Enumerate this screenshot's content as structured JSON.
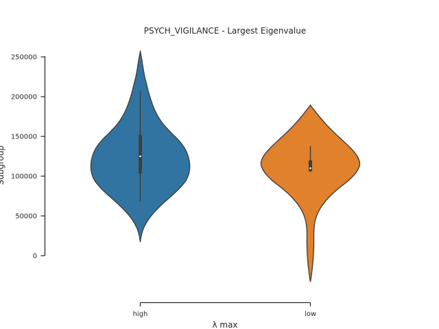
{
  "chart_data": {
    "type": "violin",
    "title": "PSYCH_VIGILANCE - Largest Eigenvalue",
    "xlabel": "λ  max",
    "ylabel": "Subgroup",
    "categories": [
      "high",
      "low"
    ],
    "ylim": [
      0,
      250000
    ],
    "yticks": [
      0,
      50000,
      100000,
      150000,
      200000,
      250000
    ],
    "ytick_labels": [
      "0",
      "50000",
      "100000",
      "150000",
      "200000",
      "250000"
    ],
    "grid": false,
    "series": [
      {
        "category": "high",
        "color": "#3274a1",
        "density_extent": [
          17000,
          257000
        ],
        "whisker": [
          68000,
          207000
        ],
        "q1": 103000,
        "q3": 152000,
        "median": 125000,
        "profile": [
          [
            17000,
            0.0
          ],
          [
            25000,
            0.02
          ],
          [
            35000,
            0.07
          ],
          [
            45000,
            0.16
          ],
          [
            55000,
            0.29
          ],
          [
            65000,
            0.45
          ],
          [
            75000,
            0.63
          ],
          [
            85000,
            0.8
          ],
          [
            95000,
            0.93
          ],
          [
            105000,
            0.99
          ],
          [
            115000,
            1.0
          ],
          [
            125000,
            0.97
          ],
          [
            135000,
            0.9
          ],
          [
            145000,
            0.78
          ],
          [
            155000,
            0.62
          ],
          [
            165000,
            0.47
          ],
          [
            175000,
            0.36
          ],
          [
            185000,
            0.28
          ],
          [
            195000,
            0.22
          ],
          [
            205000,
            0.17
          ],
          [
            215000,
            0.13
          ],
          [
            225000,
            0.09
          ],
          [
            235000,
            0.06
          ],
          [
            245000,
            0.035
          ],
          [
            252000,
            0.015
          ],
          [
            257000,
            0.0
          ]
        ]
      },
      {
        "category": "low",
        "color": "#e1812c",
        "density_extent": [
          -33000,
          189000
        ],
        "whisker": [
          105000,
          138000
        ],
        "q1": 106000,
        "q3": 120000,
        "median": 110000,
        "profile": [
          [
            -33000,
            0.0
          ],
          [
            -25000,
            0.02
          ],
          [
            -15000,
            0.04
          ],
          [
            -5000,
            0.055
          ],
          [
            5000,
            0.065
          ],
          [
            15000,
            0.07
          ],
          [
            25000,
            0.07
          ],
          [
            35000,
            0.075
          ],
          [
            45000,
            0.1
          ],
          [
            55000,
            0.16
          ],
          [
            65000,
            0.26
          ],
          [
            75000,
            0.4
          ],
          [
            85000,
            0.58
          ],
          [
            95000,
            0.78
          ],
          [
            105000,
            0.93
          ],
          [
            115000,
            1.0
          ],
          [
            125000,
            0.95
          ],
          [
            135000,
            0.82
          ],
          [
            145000,
            0.65
          ],
          [
            155000,
            0.48
          ],
          [
            165000,
            0.32
          ],
          [
            175000,
            0.18
          ],
          [
            183000,
            0.08
          ],
          [
            189000,
            0.0
          ]
        ]
      }
    ]
  }
}
